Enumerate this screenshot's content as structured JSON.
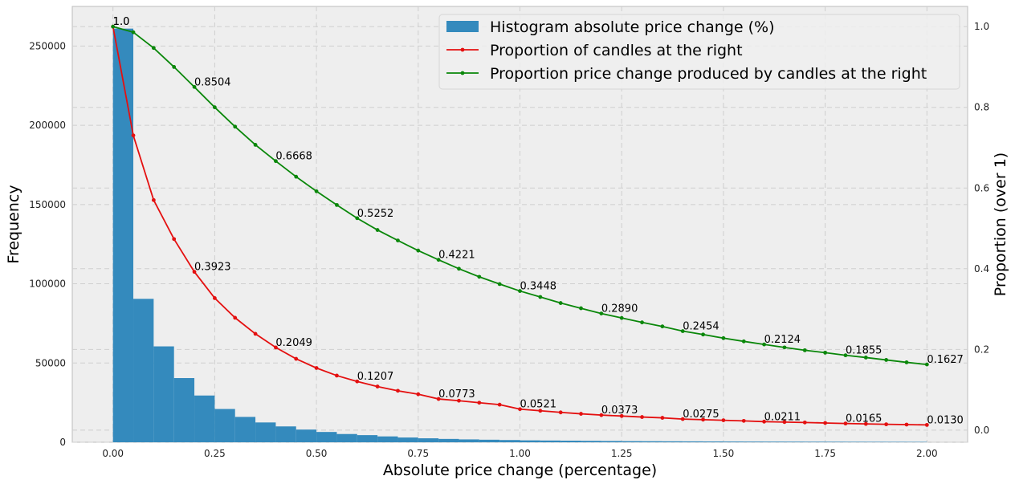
{
  "chart_data": {
    "type": "bar+line",
    "xlabel": "Absolute price change (percentage)",
    "ylabel": "Frequency",
    "ylabel_right": "Proportion (over 1)",
    "xlim": [
      -0.1,
      2.1
    ],
    "ylim": [
      0,
      275000
    ],
    "ylim_right": [
      -0.03,
      1.05
    ],
    "xticks": [
      0.0,
      0.25,
      0.5,
      0.75,
      1.0,
      1.25,
      1.5,
      1.75,
      2.0
    ],
    "xtick_labels": [
      "0.00",
      "0.25",
      "0.50",
      "0.75",
      "1.00",
      "1.25",
      "1.50",
      "1.75",
      "2.00"
    ],
    "yticks": [
      0,
      50000,
      100000,
      150000,
      200000,
      250000
    ],
    "ytick_labels": [
      "0",
      "50000",
      "100000",
      "150000",
      "200000",
      "250000"
    ],
    "yticks_right": [
      0.0,
      0.2,
      0.4,
      0.6,
      0.8,
      1.0
    ],
    "ytick_labels_right": [
      "0.0",
      "0.2",
      "0.4",
      "0.6",
      "0.8",
      "1.0"
    ],
    "grid": true,
    "legend_position": "top-right",
    "colors": {
      "histogram": "#348abd",
      "candles": "#e41010",
      "price": "#0a870a",
      "background": "#eeeeee"
    },
    "histogram": {
      "name": "Histogram absolute price change (%)",
      "bin_width": 0.05,
      "bin_starts": [
        0.0,
        0.05,
        0.1,
        0.15,
        0.2,
        0.25,
        0.3,
        0.35,
        0.4,
        0.45,
        0.5,
        0.55,
        0.6,
        0.65,
        0.7,
        0.75,
        0.8,
        0.85,
        0.9,
        0.95,
        1.0,
        1.05,
        1.1,
        1.15,
        1.2,
        1.25,
        1.3,
        1.35,
        1.4,
        1.45,
        1.5,
        1.55,
        1.6,
        1.65,
        1.7,
        1.75,
        1.8,
        1.85,
        1.9,
        1.95
      ],
      "values": [
        261000,
        90500,
        60500,
        40500,
        29500,
        21000,
        16000,
        12500,
        10000,
        8000,
        6500,
        5200,
        4500,
        3700,
        3000,
        2500,
        2100,
        1800,
        1600,
        1400,
        1200,
        1100,
        1000,
        900,
        800,
        700,
        650,
        600,
        550,
        500,
        450,
        420,
        400,
        380,
        350,
        330,
        310,
        290,
        270,
        250
      ]
    },
    "series": [
      {
        "name": "Proportion of candles at the right",
        "x": [
          0.0,
          0.05,
          0.1,
          0.15,
          0.2,
          0.25,
          0.3,
          0.35,
          0.4,
          0.45,
          0.5,
          0.55,
          0.6,
          0.65,
          0.7,
          0.75,
          0.8,
          0.85,
          0.9,
          0.95,
          1.0,
          1.05,
          1.1,
          1.15,
          1.2,
          1.25,
          1.3,
          1.35,
          1.4,
          1.45,
          1.5,
          1.55,
          1.6,
          1.65,
          1.7,
          1.75,
          1.8,
          1.85,
          1.9,
          1.95,
          2.0
        ],
        "y": [
          1.0,
          0.7303,
          0.5701,
          0.4735,
          0.3923,
          0.3272,
          0.2785,
          0.2387,
          0.2049,
          0.1767,
          0.154,
          0.1352,
          0.1207,
          0.1081,
          0.0976,
          0.089,
          0.0773,
          0.073,
          0.068,
          0.0632,
          0.0521,
          0.048,
          0.044,
          0.0405,
          0.0373,
          0.035,
          0.0325,
          0.0305,
          0.0275,
          0.026,
          0.0245,
          0.023,
          0.0211,
          0.02,
          0.019,
          0.0178,
          0.0165,
          0.0155,
          0.0145,
          0.0138,
          0.013
        ],
        "labels": [
          {
            "x": 0.0,
            "y": 1.0,
            "text": "1.0"
          },
          {
            "x": 0.2,
            "y": 0.3923,
            "text": "0.3923"
          },
          {
            "x": 0.4,
            "y": 0.2049,
            "text": "0.2049"
          },
          {
            "x": 0.6,
            "y": 0.1207,
            "text": "0.1207"
          },
          {
            "x": 0.8,
            "y": 0.0773,
            "text": "0.0773"
          },
          {
            "x": 1.0,
            "y": 0.0521,
            "text": "0.0521"
          },
          {
            "x": 1.2,
            "y": 0.0373,
            "text": "0.0373"
          },
          {
            "x": 1.4,
            "y": 0.0275,
            "text": "0.0275"
          },
          {
            "x": 1.6,
            "y": 0.0211,
            "text": "0.0211"
          },
          {
            "x": 1.8,
            "y": 0.0165,
            "text": "0.0165"
          },
          {
            "x": 2.0,
            "y": 0.013,
            "text": "0.0130"
          }
        ]
      },
      {
        "name": "Proportion price change produced by candles at the right",
        "x": [
          0.0,
          0.05,
          0.1,
          0.15,
          0.2,
          0.25,
          0.3,
          0.35,
          0.4,
          0.45,
          0.5,
          0.55,
          0.6,
          0.65,
          0.7,
          0.75,
          0.8,
          0.85,
          0.9,
          0.95,
          1.0,
          1.05,
          1.1,
          1.15,
          1.2,
          1.25,
          1.3,
          1.35,
          1.4,
          1.45,
          1.5,
          1.55,
          1.6,
          1.65,
          1.7,
          1.75,
          1.8,
          1.85,
          1.9,
          1.95,
          2.0
        ],
        "y": [
          1.0,
          0.986,
          0.947,
          0.9,
          0.8504,
          0.8,
          0.752,
          0.707,
          0.6668,
          0.628,
          0.592,
          0.558,
          0.5252,
          0.496,
          0.47,
          0.445,
          0.4221,
          0.4,
          0.38,
          0.362,
          0.3448,
          0.33,
          0.315,
          0.302,
          0.289,
          0.278,
          0.267,
          0.257,
          0.2454,
          0.237,
          0.228,
          0.22,
          0.2124,
          0.205,
          0.198,
          0.192,
          0.1855,
          0.18,
          0.174,
          0.168,
          0.1627
        ],
        "labels": [
          {
            "x": 0.0,
            "y": 1.0,
            "text": "1.0"
          },
          {
            "x": 0.2,
            "y": 0.8504,
            "text": "0.8504"
          },
          {
            "x": 0.4,
            "y": 0.6668,
            "text": "0.6668"
          },
          {
            "x": 0.6,
            "y": 0.5252,
            "text": "0.5252"
          },
          {
            "x": 0.8,
            "y": 0.4221,
            "text": "0.4221"
          },
          {
            "x": 1.0,
            "y": 0.3448,
            "text": "0.3448"
          },
          {
            "x": 1.2,
            "y": 0.289,
            "text": "0.2890"
          },
          {
            "x": 1.4,
            "y": 0.2454,
            "text": "0.2454"
          },
          {
            "x": 1.6,
            "y": 0.2124,
            "text": "0.2124"
          },
          {
            "x": 1.8,
            "y": 0.1855,
            "text": "0.1855"
          },
          {
            "x": 2.0,
            "y": 0.1627,
            "text": "0.1627"
          }
        ]
      }
    ]
  }
}
